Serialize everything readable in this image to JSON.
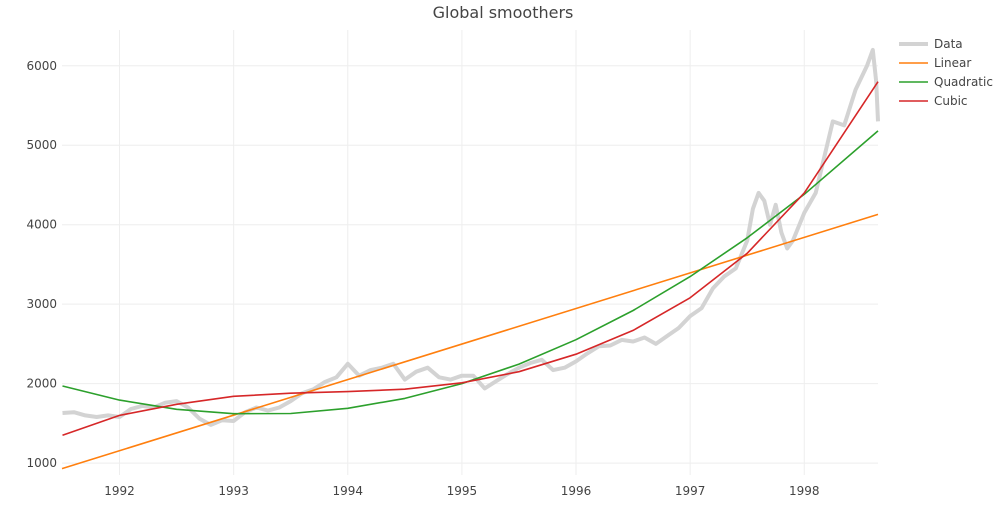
{
  "chart_data": {
    "type": "line",
    "title": "Global smoothers",
    "xlabel": "",
    "ylabel": "",
    "xlim": [
      1991.496,
      1998.646
    ],
    "ylim": [
      850,
      6450
    ],
    "grid": true,
    "legend_position": "top-right",
    "x_ticks": [
      1992,
      1993,
      1994,
      1995,
      1996,
      1997,
      1998
    ],
    "y_ticks": [
      1000,
      2000,
      3000,
      4000,
      5000,
      6000
    ],
    "series": [
      {
        "name": "Data",
        "color": "#d3d3d3",
        "x": [
          1991.5,
          1991.6,
          1991.7,
          1991.8,
          1991.9,
          1992.0,
          1992.1,
          1992.2,
          1992.3,
          1992.4,
          1992.5,
          1992.6,
          1992.7,
          1992.8,
          1992.9,
          1993.0,
          1993.1,
          1993.2,
          1993.3,
          1993.4,
          1993.5,
          1993.6,
          1993.7,
          1993.8,
          1993.9,
          1994.0,
          1994.1,
          1994.2,
          1994.3,
          1994.4,
          1994.5,
          1994.6,
          1994.7,
          1994.8,
          1994.9,
          1995.0,
          1995.1,
          1995.2,
          1995.3,
          1995.4,
          1995.5,
          1995.6,
          1995.7,
          1995.8,
          1995.9,
          1996.0,
          1996.1,
          1996.2,
          1996.3,
          1996.4,
          1996.5,
          1996.6,
          1996.7,
          1996.8,
          1996.9,
          1997.0,
          1997.1,
          1997.2,
          1997.3,
          1997.4,
          1997.5,
          1997.55,
          1997.6,
          1997.65,
          1997.7,
          1997.75,
          1997.8,
          1997.85,
          1997.9,
          1998.0,
          1998.1,
          1998.2,
          1998.25,
          1998.35,
          1998.45,
          1998.55,
          1998.6,
          1998.63,
          1998.646
        ],
        "y": [
          1630,
          1640,
          1600,
          1580,
          1600,
          1580,
          1680,
          1720,
          1700,
          1760,
          1780,
          1700,
          1560,
          1480,
          1540,
          1530,
          1640,
          1700,
          1660,
          1700,
          1780,
          1880,
          1930,
          2020,
          2080,
          2250,
          2100,
          2170,
          2200,
          2250,
          2050,
          2150,
          2200,
          2080,
          2050,
          2100,
          2100,
          1940,
          2030,
          2120,
          2200,
          2260,
          2300,
          2170,
          2200,
          2280,
          2380,
          2470,
          2480,
          2550,
          2530,
          2580,
          2500,
          2600,
          2700,
          2850,
          2950,
          3200,
          3350,
          3450,
          3800,
          4200,
          4400,
          4300,
          4000,
          4250,
          3900,
          3700,
          3800,
          4150,
          4400,
          5000,
          5300,
          5250,
          5700,
          6000,
          6200,
          5800,
          5300
        ]
      },
      {
        "name": "Linear",
        "color": "#ff7f0e",
        "x": [
          1991.496,
          1998.646
        ],
        "y": [
          930,
          4130
        ]
      },
      {
        "name": "Quadratic",
        "color": "#2ca02c",
        "x": [
          1991.5,
          1992,
          1992.5,
          1993,
          1993.5,
          1994,
          1994.5,
          1995,
          1995.5,
          1996,
          1996.5,
          1997,
          1997.5,
          1998,
          1998.646
        ],
        "y": [
          1970,
          1793,
          1677,
          1621,
          1624,
          1689,
          1814,
          2000,
          2246,
          2553,
          2920,
          3347,
          3835,
          4383,
          5180
        ]
      },
      {
        "name": "Cubic",
        "color": "#d62728",
        "x": [
          1991.5,
          1992,
          1992.5,
          1993,
          1993.5,
          1994,
          1994.5,
          1995,
          1995.5,
          1996,
          1996.5,
          1997,
          1997.5,
          1998,
          1998.646
        ],
        "y": [
          1350,
          1600,
          1740,
          1840,
          1880,
          1900,
          1930,
          2010,
          2150,
          2370,
          2670,
          3080,
          3640,
          4400,
          5800
        ]
      }
    ]
  }
}
